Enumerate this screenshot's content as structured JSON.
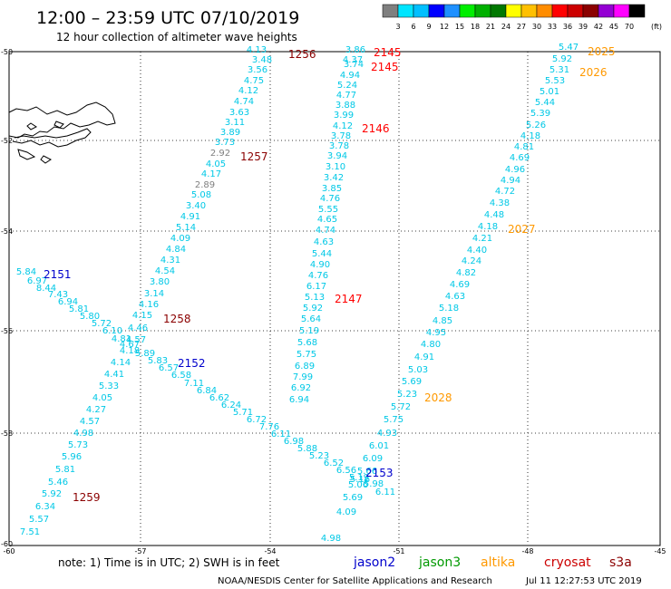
{
  "header": {
    "title": "12:00 – 23:59 UTC 07/10/2019",
    "subtitle": "12 hour collection of altimeter wave heights"
  },
  "colorbar": {
    "colors": [
      "#7f7f7f",
      "#00e5ff",
      "#00bfff",
      "#0000ff",
      "#1e90ff",
      "#00ee00",
      "#00b000",
      "#007800",
      "#ffff00",
      "#ffc000",
      "#ff8c00",
      "#ff0000",
      "#cc0000",
      "#8b0000",
      "#9400d3",
      "#ff00ff",
      "#000000"
    ],
    "labels": [
      "3",
      "6",
      "9",
      "12",
      "15",
      "18",
      "21",
      "24",
      "27",
      "30",
      "33",
      "36",
      "39",
      "42",
      "45",
      "70"
    ],
    "unit": "(ft)"
  },
  "map": {
    "lat_labels": [
      "-50",
      "-52",
      "-54",
      "-56",
      "-58",
      "-60"
    ],
    "lon_labels": [
      "-60",
      "-57",
      "-54",
      "-51",
      "-48",
      "-45"
    ],
    "land": "south-america-tip-tierra-del-fuego"
  },
  "tracks": [
    {
      "color": "#00c8e6",
      "points": [
        [
          "4.13",
          283,
          58
        ],
        [
          "3.48",
          289,
          69
        ],
        [
          "3.56",
          284,
          80
        ],
        [
          "4.75",
          280,
          92
        ],
        [
          "4.12",
          274,
          103
        ],
        [
          "4.74",
          269,
          115
        ],
        [
          "3.63",
          264,
          127
        ],
        [
          "3.11",
          259,
          138
        ],
        [
          "3.89",
          254,
          149
        ],
        [
          "3.73",
          248,
          160
        ],
        [
          "2.92",
          243,
          172,
          "#808080"
        ],
        [
          "4.05",
          238,
          184
        ],
        [
          "4.17",
          233,
          195
        ],
        [
          "2.89",
          226,
          207,
          "#808080"
        ],
        [
          "5.08",
          222,
          218
        ],
        [
          "3.40",
          216,
          230
        ],
        [
          "4.91",
          210,
          242
        ],
        [
          "5.14",
          205,
          254
        ],
        [
          "4.09",
          199,
          266
        ],
        [
          "4.84",
          194,
          278
        ],
        [
          "4.31",
          188,
          290
        ],
        [
          "4.54",
          182,
          302
        ],
        [
          "3.80",
          176,
          314
        ],
        [
          "3.14",
          170,
          327
        ],
        [
          "4.16",
          164,
          339
        ],
        [
          "4.15",
          157,
          351
        ],
        [
          "4.46",
          152,
          365
        ],
        [
          "4.57",
          150,
          378
        ],
        [
          "4.18",
          143,
          390
        ],
        [
          "4.14",
          133,
          403
        ],
        [
          "4.41",
          126,
          416
        ],
        [
          "5.33",
          120,
          429
        ],
        [
          "4.05",
          113,
          442
        ],
        [
          "4.27",
          106,
          455
        ],
        [
          "4.57",
          99,
          468
        ],
        [
          "4.98",
          92,
          481
        ],
        [
          "5.73",
          86,
          494
        ],
        [
          "5.96",
          79,
          507
        ],
        [
          "5.81",
          72,
          521
        ],
        [
          "5.46",
          64,
          535
        ],
        [
          "5.92",
          57,
          548
        ],
        [
          "6.34",
          50,
          562
        ],
        [
          "5.57",
          43,
          576
        ],
        [
          "7.51",
          33,
          590
        ]
      ]
    },
    {
      "color": "#00c8e6",
      "points": [
        [
          "5.84",
          29,
          303
        ],
        [
          "6.97",
          41,
          313
        ],
        [
          "8.44",
          51,
          321
        ],
        [
          "7.43",
          64,
          328
        ],
        [
          "6.94",
          75,
          336
        ],
        [
          "5.81",
          87,
          344
        ],
        [
          "5.80",
          99,
          352
        ],
        [
          "5.72",
          112,
          360
        ],
        [
          "6.10",
          124,
          368
        ],
        [
          "4.81",
          134,
          377
        ],
        [
          "4.67",
          143,
          383
        ],
        [
          "5.89",
          160,
          393
        ],
        [
          "5.83",
          174,
          401
        ],
        [
          "6.57",
          186,
          409
        ],
        [
          "6.58",
          200,
          417
        ],
        [
          "7.11",
          214,
          426
        ],
        [
          "6.84",
          228,
          434
        ],
        [
          "6.62",
          242,
          442
        ],
        [
          "6.24",
          255,
          450
        ],
        [
          "5.71",
          268,
          458
        ],
        [
          "6.72",
          283,
          466
        ],
        [
          "7.76",
          297,
          474
        ],
        [
          "6.11",
          310,
          482
        ],
        [
          "6.98",
          324,
          490
        ],
        [
          "5.88",
          339,
          498
        ],
        [
          "5.23",
          352,
          506
        ],
        [
          "6.52",
          368,
          514
        ],
        [
          "6.56",
          382,
          522
        ],
        [
          "5.19",
          396,
          530
        ],
        [
          "5.06",
          395,
          538
        ],
        [
          "5.98",
          412,
          537
        ],
        [
          "6.11",
          425,
          546
        ]
      ]
    },
    {
      "color": "#00c8e6",
      "points": [
        [
          "3.86",
          392,
          58
        ],
        [
          "4.37",
          389,
          69
        ],
        [
          "3.74",
          390,
          74
        ],
        [
          "4.94",
          386,
          86
        ],
        [
          "5.24",
          383,
          97
        ],
        [
          "4.77",
          382,
          108
        ],
        [
          "3.88",
          381,
          119
        ],
        [
          "3.99",
          379,
          130
        ],
        [
          "4.12",
          378,
          142
        ],
        [
          "3.78",
          376,
          153
        ],
        [
          "3.78",
          374,
          164
        ],
        [
          "3.94",
          372,
          175
        ],
        [
          "3.10",
          370,
          187
        ],
        [
          "3.42",
          368,
          199
        ],
        [
          "3.85",
          366,
          211
        ],
        [
          "4.76",
          364,
          222
        ],
        [
          "5.55",
          362,
          234
        ],
        [
          "4.65",
          361,
          245
        ],
        [
          "4.74",
          359,
          257
        ],
        [
          "4.63",
          357,
          270
        ],
        [
          "5.44",
          355,
          283
        ],
        [
          "4.90",
          353,
          295
        ],
        [
          "4.76",
          351,
          307
        ],
        [
          "6.17",
          349,
          319
        ],
        [
          "5.13",
          347,
          331
        ],
        [
          "5.92",
          345,
          343
        ],
        [
          "5.64",
          343,
          355
        ],
        [
          "5.19",
          341,
          368
        ],
        [
          "5.68",
          339,
          381
        ],
        [
          "5.75",
          338,
          394
        ],
        [
          "6.89",
          336,
          407
        ],
        [
          "7.99",
          334,
          419
        ],
        [
          "6.92",
          332,
          431
        ],
        [
          "6.94",
          330,
          444
        ]
      ]
    },
    {
      "color": "#00c8e6",
      "points": [
        [
          "5.47",
          627,
          55
        ],
        [
          "5.92",
          620,
          68
        ],
        [
          "5.31",
          617,
          80
        ],
        [
          "5.53",
          612,
          92
        ],
        [
          "5.01",
          606,
          104
        ],
        [
          "5.44",
          601,
          116
        ],
        [
          "5.39",
          596,
          128
        ],
        [
          "5.26",
          591,
          141
        ],
        [
          "4.18",
          585,
          153
        ],
        [
          "4.81",
          578,
          165
        ],
        [
          "4.69",
          573,
          177
        ],
        [
          "4.96",
          568,
          190
        ],
        [
          "4.94",
          563,
          202
        ],
        [
          "4.72",
          557,
          214
        ],
        [
          "4.38",
          551,
          227
        ],
        [
          "4.48",
          545,
          240
        ],
        [
          "4.18",
          538,
          253
        ],
        [
          "4.21",
          532,
          266
        ],
        [
          "4.40",
          526,
          279
        ],
        [
          "4.24",
          520,
          291
        ],
        [
          "4.82",
          514,
          304
        ],
        [
          "4.69",
          507,
          317
        ],
        [
          "4.63",
          502,
          330
        ],
        [
          "5.18",
          495,
          343
        ],
        [
          "4.85",
          488,
          357
        ],
        [
          "4.95",
          481,
          370
        ],
        [
          "4.80",
          475,
          383
        ],
        [
          "4.91",
          468,
          397
        ],
        [
          "5.03",
          461,
          411
        ],
        [
          "5.69",
          454,
          424
        ],
        [
          "5.23",
          449,
          438
        ],
        [
          "5.72",
          442,
          452
        ],
        [
          "5.75",
          434,
          466
        ],
        [
          "4.93",
          427,
          481
        ],
        [
          "6.01",
          418,
          495
        ],
        [
          "6.09",
          411,
          509
        ],
        [
          "5.66",
          405,
          523
        ],
        [
          "5.16",
          397,
          532
        ],
        [
          "5.69",
          389,
          552
        ],
        [
          "4.09",
          382,
          568
        ],
        [
          "4.98",
          365,
          597
        ]
      ]
    }
  ],
  "passes": [
    {
      "label": "1256",
      "color": "#8b0000"
    },
    {
      "label": "1257",
      "color": "#8b0000"
    },
    {
      "label": "1258",
      "color": "#8b0000"
    },
    {
      "label": "1259",
      "color": "#8b0000"
    },
    {
      "label": "2145",
      "color": "#ff0000"
    },
    {
      "label": "2145",
      "color": "#ff0000"
    },
    {
      "label": "2146",
      "color": "#ff0000"
    },
    {
      "label": "2147",
      "color": "#ff0000"
    },
    {
      "label": "2151",
      "color": "#0000cc"
    },
    {
      "label": "2152",
      "color": "#0000cc"
    },
    {
      "label": "2153",
      "color": "#0000cc"
    },
    {
      "label": "2025",
      "color": "#ff9900"
    },
    {
      "label": "2026",
      "color": "#ff9900"
    },
    {
      "label": "2027",
      "color": "#ff9900"
    },
    {
      "label": "2028",
      "color": "#ff9900"
    }
  ],
  "footer": {
    "note": "note: 1) Time is in UTC; 2) SWH is in feet",
    "legend": [
      {
        "label": "jason2",
        "color": "#0000cc"
      },
      {
        "label": "jason3",
        "color": "#009900"
      },
      {
        "label": "altika",
        "color": "#ff9900"
      },
      {
        "label": "cryosat",
        "color": "#cc0000"
      },
      {
        "label": "s3a",
        "color": "#8b0000"
      }
    ],
    "credit": "NOAA/NESDIS Center for Satellite Applications and Research",
    "timestamp": "Jul 11 12:27:53 UTC 2019"
  }
}
